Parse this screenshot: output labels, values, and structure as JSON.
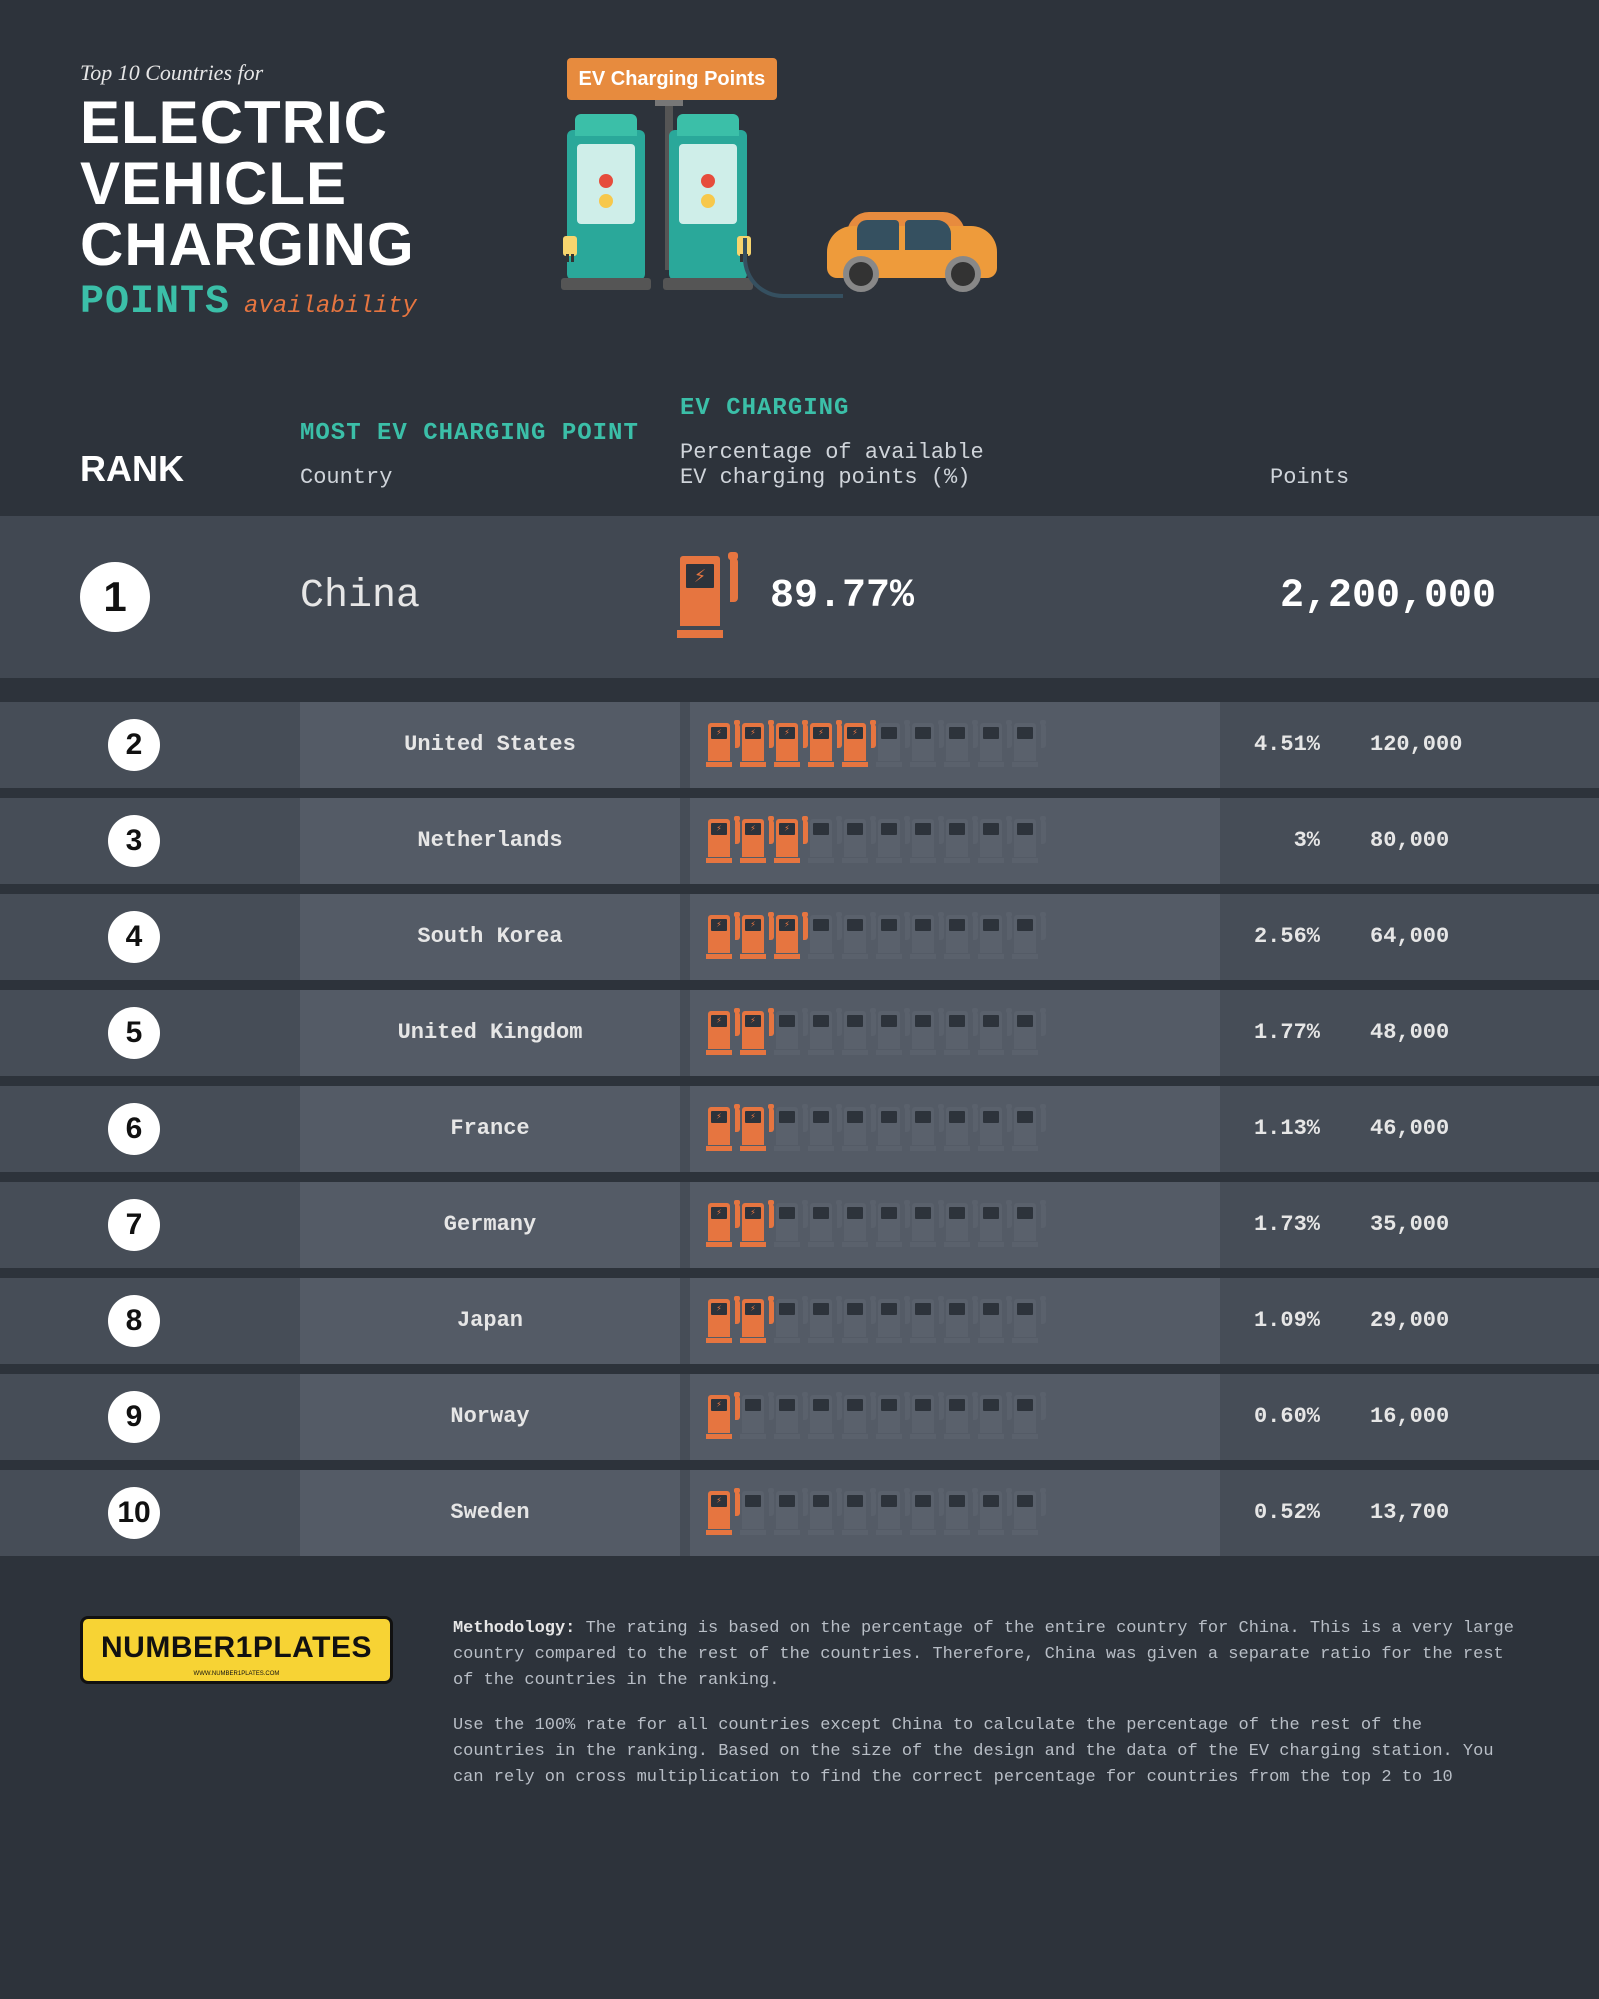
{
  "type": "infographic-table",
  "colors": {
    "background": "#2d333b",
    "row_bg": "#464d57",
    "row_cell_bg": "#545b66",
    "featured_bg": "#414852",
    "accent_teal": "#3bbfa8",
    "accent_orange": "#e67540",
    "text": "#e6e6e6",
    "muted_text": "#b8bec6",
    "icon_off": "#5a616c",
    "badge_bg": "#ffffff",
    "badge_text": "#111111",
    "plate_bg": "#f7d334"
  },
  "header": {
    "pretitle": "Top 10 Countries for",
    "title_lines": [
      "ELECTRIC",
      "VEHICLE",
      "CHARGING"
    ],
    "sub_points": "POINTS",
    "sub_avail": "availability",
    "sign_label": "EV Charging Points"
  },
  "columns": {
    "rank": "RANK",
    "most_header": "MOST EV CHARGING POINT",
    "country_sub": "Country",
    "ev_header": "EV CHARGING",
    "ev_sub": "Percentage of available\nEV charging points (%)",
    "points": "Points"
  },
  "featured": {
    "rank": "1",
    "country": "China",
    "percent": "89.77%",
    "points": "2,200,000"
  },
  "rows": [
    {
      "rank": "2",
      "country": "United States",
      "percent": "4.51%",
      "points": "120,000",
      "icons_on": 5,
      "icons_off": 5
    },
    {
      "rank": "3",
      "country": "Netherlands",
      "percent": "3%",
      "points": "80,000",
      "icons_on": 3,
      "icons_off": 7
    },
    {
      "rank": "4",
      "country": "South Korea",
      "percent": "2.56%",
      "points": "64,000",
      "icons_on": 3,
      "icons_off": 7
    },
    {
      "rank": "5",
      "country": "United Kingdom",
      "percent": "1.77%",
      "points": "48,000",
      "icons_on": 2,
      "icons_off": 8
    },
    {
      "rank": "6",
      "country": "France",
      "percent": "1.13%",
      "points": "46,000",
      "icons_on": 2,
      "icons_off": 8
    },
    {
      "rank": "7",
      "country": "Germany",
      "percent": "1.73%",
      "points": "35,000",
      "icons_on": 2,
      "icons_off": 8
    },
    {
      "rank": "8",
      "country": "Japan",
      "percent": "1.09%",
      "points": "29,000",
      "icons_on": 2,
      "icons_off": 8
    },
    {
      "rank": "9",
      "country": "Norway",
      "percent": "0.60%",
      "points": "16,000",
      "icons_on": 1,
      "icons_off": 9
    },
    {
      "rank": "10",
      "country": "Sweden",
      "percent": "0.52%",
      "points": "13,700",
      "icons_on": 1,
      "icons_off": 9
    }
  ],
  "footer": {
    "logo_text": "NUMBER1PLATES",
    "logo_sub": "WWW.NUMBER1PLATES.COM",
    "methodology_label": "Methodology:",
    "methodology_p1": " The rating is based on the percentage of the entire country for China. This is a very large country compared to the rest of the countries. Therefore, China was given a separate ratio for the rest of the countries in the ranking.",
    "methodology_p2": "Use the 100% rate for all countries except China to calculate the percentage of the rest of the countries in the ranking. Based on the size of the design and the data of the EV charging station. You can rely on cross multiplication to find the correct percentage for countries from the top 2 to 10"
  },
  "icon_grid": {
    "total": 10
  },
  "typography": {
    "title_fontsize": 60,
    "title_weight": 900,
    "pretitle_fontsize": 22,
    "subtitle_points_fontsize": 40,
    "col_header_fontsize": 24,
    "row_fontsize": 22,
    "featured_fontsize": 40,
    "footer_fontsize": 17
  }
}
